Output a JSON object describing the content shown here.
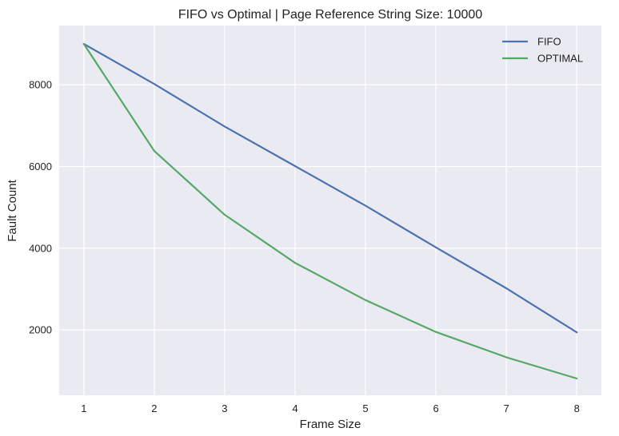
{
  "chart_data": {
    "type": "line",
    "title": "FIFO vs Optimal | Page Reference String Size: 10000",
    "xlabel": "Frame Size",
    "ylabel": "Fault Count",
    "x": [
      1,
      2,
      3,
      4,
      5,
      6,
      7,
      8
    ],
    "xlim": [
      0.65,
      8.35
    ],
    "ylim": [
      400,
      9450
    ],
    "xticks": [
      1,
      2,
      3,
      4,
      5,
      6,
      7,
      8
    ],
    "yticks": [
      2000,
      4000,
      6000,
      8000
    ],
    "grid": true,
    "legend_position": "top-right",
    "series": [
      {
        "name": "FIFO",
        "color": "#4c72b0",
        "values": [
          9000,
          8020,
          6980,
          6010,
          5040,
          4020,
          3020,
          1940
        ]
      },
      {
        "name": "OPTIMAL",
        "color": "#55a868",
        "values": [
          9000,
          6380,
          4820,
          3640,
          2730,
          1950,
          1330,
          810
        ]
      }
    ],
    "background_color": "#eaeaf2",
    "grid_color": "#ffffff"
  }
}
